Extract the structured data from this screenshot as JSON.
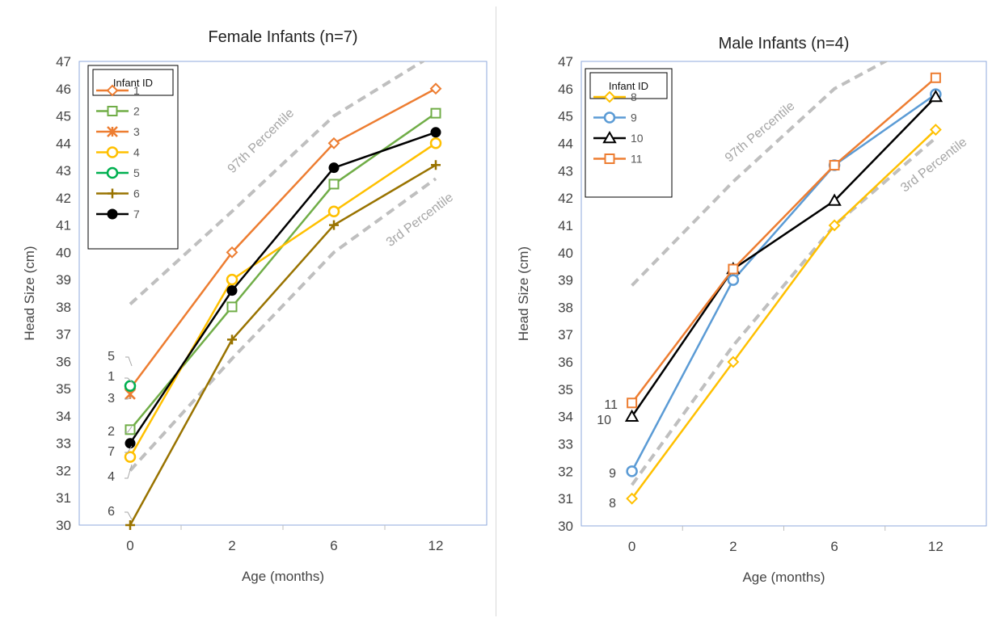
{
  "chart_data": [
    {
      "type": "line",
      "title": "Female Infants (n=7)",
      "xlabel": "Age (months)",
      "ylabel": "Head Size (cm)",
      "categories": [
        "0",
        "2",
        "6",
        "12"
      ],
      "ylim": [
        30,
        47
      ],
      "y_ticks": [
        "30",
        "31",
        "32",
        "33",
        "34",
        "35",
        "36",
        "37",
        "38",
        "39",
        "40",
        "41",
        "42",
        "43",
        "44",
        "45",
        "46",
        "47"
      ],
      "grid": false,
      "legend": {
        "title": "Infant ID",
        "placement": "top-left"
      },
      "series": [
        {
          "name": "1",
          "values": [
            35.0,
            40.0,
            44.0,
            46.0
          ],
          "color": "#ed7d31",
          "marker": "diamond-open"
        },
        {
          "name": "2",
          "values": [
            33.5,
            38.0,
            42.5,
            45.1
          ],
          "color": "#70ad47",
          "marker": "square-open"
        },
        {
          "name": "3",
          "values": [
            34.8,
            null,
            null,
            null
          ],
          "color": "#ed7d31",
          "marker": "star"
        },
        {
          "name": "4",
          "values": [
            32.5,
            39.0,
            41.5,
            44.0
          ],
          "color": "#ffc000",
          "marker": "circle-open"
        },
        {
          "name": "5",
          "values": [
            35.1,
            null,
            null,
            null
          ],
          "color": "#00b050",
          "marker": "circle-open"
        },
        {
          "name": "6",
          "values": [
            30.0,
            36.8,
            41.0,
            43.2
          ],
          "color": "#997300",
          "marker": "plus"
        },
        {
          "name": "7",
          "values": [
            33.0,
            38.6,
            43.1,
            44.4
          ],
          "color": "#000000",
          "marker": "circle-filled"
        }
      ],
      "reference_lines": [
        {
          "name": "97th Percentile",
          "values": [
            38.1,
            41.5,
            45.0,
            47.3
          ],
          "color": "#bfbfbf"
        },
        {
          "name": "3rd Percentile",
          "values": [
            32.0,
            36.1,
            40.0,
            42.7
          ],
          "color": "#bfbfbf"
        }
      ],
      "point_labels": [
        "5",
        "1",
        "3",
        "2",
        "7",
        "4",
        "6"
      ]
    },
    {
      "type": "line",
      "title": "Male Infants (n=4)",
      "xlabel": "Age (months)",
      "ylabel": "Head Size (cm)",
      "categories": [
        "0",
        "2",
        "6",
        "12"
      ],
      "ylim": [
        30,
        47
      ],
      "y_ticks": [
        "30",
        "31",
        "32",
        "33",
        "34",
        "35",
        "36",
        "37",
        "38",
        "39",
        "40",
        "41",
        "42",
        "43",
        "44",
        "45",
        "46",
        "47"
      ],
      "grid": false,
      "legend": {
        "title": "Infant ID",
        "placement": "top-left"
      },
      "series": [
        {
          "name": "8",
          "values": [
            31.0,
            36.0,
            41.0,
            44.5
          ],
          "color": "#ffc000",
          "marker": "diamond-open"
        },
        {
          "name": "9",
          "values": [
            32.0,
            39.0,
            43.2,
            45.8
          ],
          "color": "#5b9bd5",
          "marker": "circle-open"
        },
        {
          "name": "10",
          "values": [
            34.0,
            39.4,
            41.9,
            45.7
          ],
          "color": "#000000",
          "marker": "triangle-open"
        },
        {
          "name": "11",
          "values": [
            34.5,
            39.4,
            43.2,
            46.4
          ],
          "color": "#ed7d31",
          "marker": "square-open"
        }
      ],
      "reference_lines": [
        {
          "name": "97th Percentile",
          "values": [
            38.8,
            42.6,
            46.0,
            48.0
          ],
          "color": "#bfbfbf"
        },
        {
          "name": "3rd Percentile",
          "values": [
            31.5,
            36.6,
            41.0,
            44.2
          ],
          "color": "#bfbfbf"
        }
      ],
      "point_labels": [
        "11",
        "10",
        "9",
        "8"
      ]
    }
  ]
}
